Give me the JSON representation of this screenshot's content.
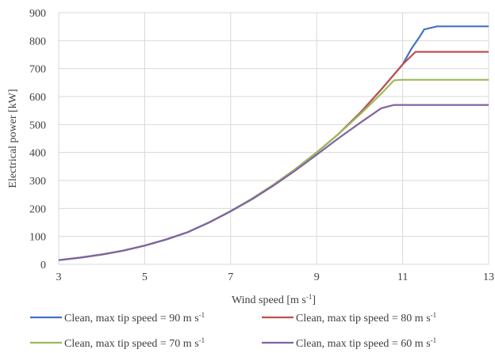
{
  "chart_data": {
    "type": "line",
    "title": "",
    "xlabel": "Wind speed [m s",
    "xlabel_sup": "-1",
    "xlabel_close": "]",
    "ylabel": "Electrical power [kW]",
    "xlim": [
      3,
      13
    ],
    "ylim": [
      0,
      900
    ],
    "x_ticks": [
      3,
      5,
      7,
      9,
      11,
      13
    ],
    "y_ticks": [
      0,
      100,
      200,
      300,
      400,
      500,
      600,
      700,
      800,
      900
    ],
    "grid": true,
    "legend_position": "bottom",
    "series": [
      {
        "name": "Clean, max tip speed = 90 m s",
        "name_sup": "-1",
        "color": "#4472C4",
        "x": [
          3,
          3.5,
          4,
          4.5,
          5,
          5.5,
          6,
          6.5,
          7,
          7.5,
          8,
          8.5,
          9,
          9.5,
          10,
          10.5,
          11,
          11.2,
          11.4,
          11.5,
          11.8,
          12,
          12.5,
          13
        ],
        "y": [
          15,
          24,
          35,
          49,
          67,
          89,
          115,
          150,
          190,
          235,
          285,
          340,
          400,
          465,
          540,
          625,
          715,
          770,
          815,
          840,
          851,
          851,
          851,
          851
        ]
      },
      {
        "name": "Clean, max tip speed = 80 m s",
        "name_sup": "-1",
        "color": "#C0504D",
        "x": [
          3,
          3.5,
          4,
          4.5,
          5,
          5.5,
          6,
          6.5,
          7,
          7.5,
          8,
          8.5,
          9,
          9.5,
          10,
          10.5,
          11,
          11.3,
          11.5,
          12,
          12.5,
          13
        ],
        "y": [
          15,
          24,
          35,
          49,
          67,
          89,
          115,
          150,
          190,
          235,
          285,
          340,
          400,
          465,
          540,
          625,
          715,
          760,
          760,
          760,
          760,
          760
        ]
      },
      {
        "name": "Clean, max tip speed = 70 m s",
        "name_sup": "-1",
        "color": "#9BBB59",
        "x": [
          3,
          3.5,
          4,
          4.5,
          5,
          5.5,
          6,
          6.5,
          7,
          7.5,
          8,
          8.5,
          9,
          9.5,
          10,
          10.5,
          10.8,
          11,
          11.5,
          12,
          12.5,
          13
        ],
        "y": [
          15,
          24,
          35,
          49,
          67,
          89,
          115,
          150,
          190,
          235,
          285,
          340,
          400,
          465,
          535,
          610,
          658,
          660,
          660,
          660,
          660,
          660
        ]
      },
      {
        "name": "Clean, max tip speed = 60 m s",
        "name_sup": "-1",
        "color": "#8064A2",
        "x": [
          3,
          3.5,
          4,
          4.5,
          5,
          5.5,
          6,
          6.5,
          7,
          7.5,
          8,
          8.5,
          9,
          9.5,
          10,
          10.5,
          10.8,
          11,
          11.5,
          12,
          12.5,
          13
        ],
        "y": [
          15,
          24,
          35,
          49,
          67,
          89,
          115,
          150,
          190,
          233,
          282,
          335,
          392,
          450,
          505,
          558,
          570,
          570,
          570,
          570,
          570,
          570
        ]
      }
    ]
  }
}
